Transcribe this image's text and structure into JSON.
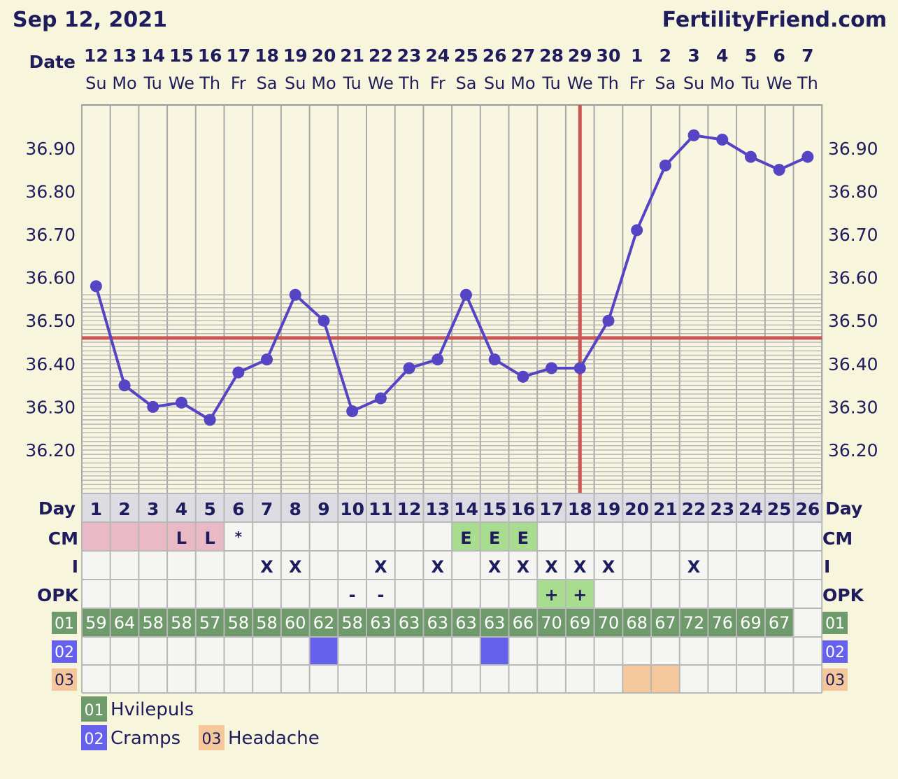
{
  "header": {
    "date": "Sep 12, 2021",
    "site": "FertilityFriend.com"
  },
  "row_labels": {
    "date": "Date",
    "day": "Day",
    "cm": "CM",
    "i": "I",
    "opk": "OPK"
  },
  "chart_data": {
    "type": "line",
    "dates": [
      "12",
      "13",
      "14",
      "15",
      "16",
      "17",
      "18",
      "19",
      "20",
      "21",
      "22",
      "23",
      "24",
      "25",
      "26",
      "27",
      "28",
      "29",
      "30",
      "1",
      "2",
      "3",
      "4",
      "5",
      "6",
      "7"
    ],
    "weekdays": [
      "Su",
      "Mo",
      "Tu",
      "We",
      "Th",
      "Fr",
      "Sa",
      "Su",
      "Mo",
      "Tu",
      "We",
      "Th",
      "Fr",
      "Sa",
      "Su",
      "Mo",
      "Tu",
      "We",
      "Th",
      "Fr",
      "Sa",
      "Su",
      "Mo",
      "Tu",
      "We",
      "Th"
    ],
    "days": [
      1,
      2,
      3,
      4,
      5,
      6,
      7,
      8,
      9,
      10,
      11,
      12,
      13,
      14,
      15,
      16,
      17,
      18,
      19,
      20,
      21,
      22,
      23,
      24,
      25,
      26
    ],
    "temperatures": [
      36.58,
      36.35,
      36.3,
      36.31,
      36.27,
      36.38,
      36.41,
      36.56,
      36.5,
      36.29,
      36.32,
      36.39,
      36.41,
      36.56,
      36.41,
      36.37,
      36.39,
      36.39,
      36.5,
      36.71,
      36.86,
      36.93,
      36.92,
      36.88,
      36.85,
      36.88
    ],
    "ylim": [
      36.1,
      37.0
    ],
    "yticks": [
      "36.20",
      "36.30",
      "36.40",
      "36.50",
      "36.60",
      "36.70",
      "36.80",
      "36.90"
    ],
    "coverline": 36.46,
    "ovulation_day": 18,
    "line_color": "#5544c4",
    "reference_color": "#cc5555",
    "grid": true
  },
  "rows": {
    "cm": [
      "",
      "",
      "",
      "L",
      "L",
      "*",
      "",
      "",
      "",
      "",
      "",
      "",
      "",
      "E",
      "E",
      "E",
      "",
      "",
      "",
      "",
      "",
      "",
      "",
      "",
      "",
      ""
    ],
    "cm_colors": [
      "#e9b9c6",
      "#e9b9c6",
      "#e9b9c6",
      "#e9b9c6",
      "#e9b9c6",
      "",
      "",
      "",
      "",
      "",
      "",
      "",
      "",
      "#a8dd90",
      "#a8dd90",
      "#a8dd90",
      "",
      "",
      "",
      "",
      "",
      "",
      "",
      "",
      "",
      ""
    ],
    "i": [
      "",
      "",
      "",
      "",
      "",
      "",
      "X",
      "X",
      "",
      "",
      "X",
      "",
      "X",
      "",
      "X",
      "X",
      "X",
      "X",
      "X",
      "",
      "",
      "X",
      "",
      "",
      "",
      ""
    ],
    "opk": [
      "",
      "",
      "",
      "",
      "",
      "",
      "",
      "",
      "",
      "-",
      "-",
      "",
      "",
      "",
      "",
      "",
      "+",
      "+",
      "",
      "",
      "",
      "",
      "",
      "",
      "",
      ""
    ],
    "opk_colors": [
      "",
      "",
      "",
      "",
      "",
      "",
      "",
      "",
      "",
      "",
      "",
      "",
      "",
      "",
      "",
      "",
      "#a8dd90",
      "#a8dd90",
      "",
      "",
      "",
      "",
      "",
      "",
      "",
      ""
    ],
    "custom": [
      {
        "code": "01",
        "color": "#6e9a6c",
        "values": [
          "59",
          "64",
          "58",
          "58",
          "57",
          "58",
          "58",
          "60",
          "62",
          "58",
          "63",
          "63",
          "63",
          "63",
          "63",
          "66",
          "70",
          "69",
          "70",
          "68",
          "67",
          "72",
          "76",
          "69",
          "67",
          ""
        ]
      },
      {
        "code": "02",
        "color": "#6660ee",
        "values": [],
        "marked_days": [
          9,
          15
        ]
      },
      {
        "code": "03",
        "color": "#f4c89a",
        "values": [],
        "marked_days": [
          20,
          21
        ]
      }
    ]
  },
  "legend": [
    {
      "code": "01",
      "label": "Hvilepuls",
      "color": "#6e9a6c"
    },
    {
      "code": "02",
      "label": "Cramps",
      "color": "#6660ee"
    },
    {
      "code": "03",
      "label": "Headache",
      "color": "#f4c89a"
    }
  ]
}
